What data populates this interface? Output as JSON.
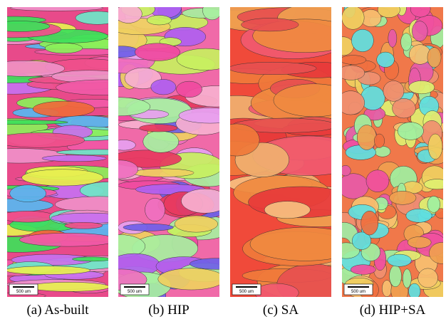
{
  "panels": [
    {
      "caption": "(a) As-built",
      "scale_bar": "500 um"
    },
    {
      "caption": "(b) HIP",
      "scale_bar": "500 um"
    },
    {
      "caption": "(c) SA",
      "scale_bar": "500 um"
    },
    {
      "caption": "(d) HIP+SA",
      "scale_bar": "500 um"
    }
  ]
}
